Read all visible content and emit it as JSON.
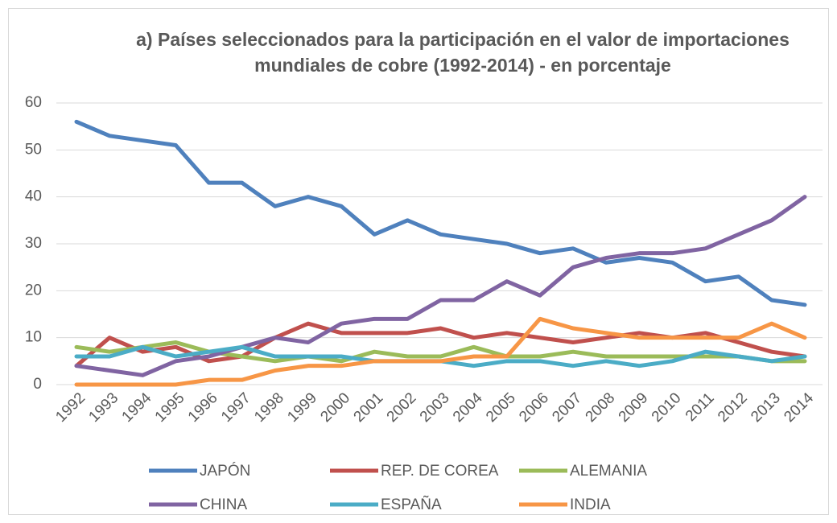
{
  "chart_data": {
    "type": "line",
    "title": "a) Países seleccionados para la participación en el valor de importaciones mundiales de cobre (1992-2014) - en porcentaje",
    "categories": [
      "1992",
      "1993",
      "1994",
      "1995",
      "1996",
      "1997",
      "1998",
      "1999",
      "2000",
      "2001",
      "2002",
      "2003",
      "2004",
      "2005",
      "2006",
      "2007",
      "2008",
      "2009",
      "2010",
      "2011",
      "2012",
      "2013",
      "2014"
    ],
    "series": [
      {
        "name": "JAPÓN",
        "color": "#4f81bd",
        "values": [
          56,
          53,
          52,
          51,
          43,
          43,
          38,
          40,
          38,
          32,
          35,
          32,
          31,
          30,
          28,
          29,
          26,
          27,
          26,
          22,
          23,
          18,
          17
        ]
      },
      {
        "name": "REP. DE COREA",
        "color": "#c0504d",
        "values": [
          4,
          10,
          7,
          8,
          5,
          6,
          10,
          13,
          11,
          11,
          11,
          12,
          10,
          11,
          10,
          9,
          10,
          11,
          10,
          11,
          9,
          7,
          6
        ]
      },
      {
        "name": "ALEMANIA",
        "color": "#9bbb59",
        "values": [
          8,
          7,
          8,
          9,
          7,
          6,
          5,
          6,
          5,
          7,
          6,
          6,
          8,
          6,
          6,
          7,
          6,
          6,
          6,
          6,
          6,
          5,
          5
        ]
      },
      {
        "name": "CHINA",
        "color": "#8064a2",
        "values": [
          4,
          3,
          2,
          5,
          6,
          8,
          10,
          9,
          13,
          14,
          14,
          18,
          18,
          22,
          19,
          25,
          27,
          28,
          28,
          29,
          32,
          35,
          40
        ]
      },
      {
        "name": "ESPAÑA",
        "color": "#4bacc6",
        "values": [
          6,
          6,
          8,
          6,
          7,
          8,
          6,
          6,
          6,
          5,
          5,
          5,
          4,
          5,
          5,
          4,
          5,
          4,
          5,
          7,
          6,
          5,
          6
        ]
      },
      {
        "name": "INDIA",
        "color": "#f79646",
        "values": [
          0,
          0,
          0,
          0,
          1,
          1,
          3,
          4,
          4,
          5,
          5,
          5,
          6,
          6,
          14,
          12,
          11,
          10,
          10,
          10,
          10,
          13,
          10
        ]
      }
    ],
    "ylim": [
      0,
      60
    ],
    "yticks": [
      0,
      10,
      20,
      30,
      40,
      50,
      60
    ],
    "grid": true
  }
}
